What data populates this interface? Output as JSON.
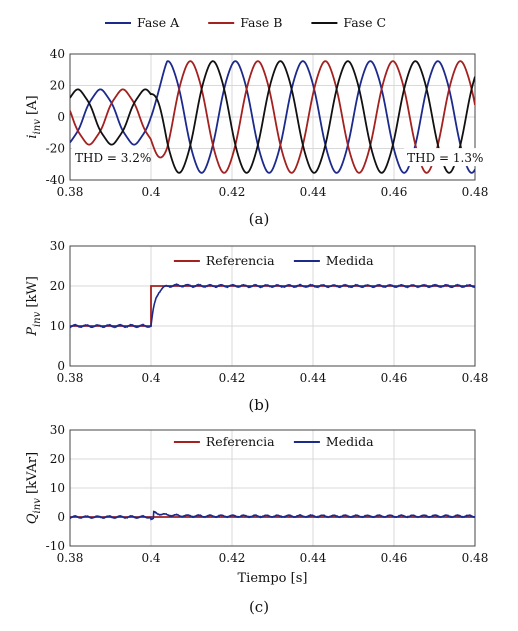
{
  "colors": {
    "fase_a": "#1c2a8c",
    "fase_b": "#a3211f",
    "fase_c": "#111111",
    "referencia": "#a3211f",
    "medida": "#1c2a8c",
    "grid": "#d9d9d9",
    "axis": "#444444"
  },
  "chart_data": [
    {
      "type": "line",
      "caption": "(a)",
      "ylabel_main": "i",
      "ylabel_sub": "inv",
      "ylabel_unit": "[A]",
      "xlabel": "",
      "xlim": [
        0.38,
        0.48
      ],
      "ylim": [
        -40,
        40
      ],
      "xticks": [
        0.38,
        0.4,
        0.42,
        0.44,
        0.46,
        0.48
      ],
      "xtick_labels": [
        "0.38",
        "0.4",
        "0.42",
        "0.44",
        "0.46",
        "0.48"
      ],
      "yticks": [
        -40,
        -20,
        0,
        20,
        40
      ],
      "ytick_labels": [
        "-40",
        "-20",
        "0",
        "20",
        "40"
      ],
      "grid": true,
      "legend_position": "top-outside",
      "annotations": [
        {
          "text": "THD = 3.2%",
          "x": 0.3805,
          "y": -28
        },
        {
          "text": "THD = 1.3%",
          "x": 0.4625,
          "y": -28
        }
      ],
      "frequency_hz": 60,
      "series": [
        {
          "name": "Fase A",
          "color_key": "fase_a",
          "amplitude_before": 17,
          "amplitude_after": 35,
          "phase_deg": 0,
          "harmonic_ratio": 0.032
        },
        {
          "name": "Fase B",
          "color_key": "fase_b",
          "amplitude_before": 17,
          "amplitude_after": 35,
          "phase_deg": -120,
          "harmonic_ratio": 0.032
        },
        {
          "name": "Fase C",
          "color_key": "fase_c",
          "amplitude_before": 17,
          "amplitude_after": 35,
          "phase_deg": 120,
          "harmonic_ratio": 0.032
        }
      ],
      "step_time": 0.4,
      "transition_end": 0.404
    },
    {
      "type": "line",
      "caption": "(b)",
      "ylabel_main": "P",
      "ylabel_sub": "inv",
      "ylabel_unit": "[kW]",
      "xlabel": "",
      "xlim": [
        0.38,
        0.48
      ],
      "ylim": [
        0,
        30
      ],
      "xticks": [
        0.38,
        0.4,
        0.42,
        0.44,
        0.46,
        0.48
      ],
      "xtick_labels": [
        "0.38",
        "0.4",
        "0.42",
        "0.44",
        "0.46",
        "0.48"
      ],
      "yticks": [
        0,
        10,
        20,
        30
      ],
      "ytick_labels": [
        "0",
        "10",
        "20",
        "30"
      ],
      "grid": true,
      "legend_position": "top-center",
      "series": [
        {
          "name": "Referencia",
          "color_key": "referencia",
          "kind": "step",
          "before": 10,
          "after": 20,
          "step_time": 0.4
        },
        {
          "name": "Medida",
          "color_key": "medida",
          "kind": "measured",
          "before": 10,
          "after": 20,
          "ripple": 0.25,
          "overshoot": 0.8,
          "step_time": 0.4
        }
      ]
    },
    {
      "type": "line",
      "caption": "(c)",
      "ylabel_main": "Q",
      "ylabel_sub": "inv",
      "ylabel_unit": "[kVAr]",
      "xlabel": "Tiempo [s]",
      "xlim": [
        0.38,
        0.48
      ],
      "ylim": [
        -10,
        30
      ],
      "xticks": [
        0.38,
        0.4,
        0.42,
        0.44,
        0.46,
        0.48
      ],
      "xtick_labels": [
        "0.38",
        "0.4",
        "0.42",
        "0.44",
        "0.46",
        "0.48"
      ],
      "yticks": [
        -10,
        0,
        10,
        20,
        30
      ],
      "ytick_labels": [
        "-10",
        "0",
        "10",
        "20",
        "30"
      ],
      "grid": true,
      "legend_position": "top-center",
      "series": [
        {
          "name": "Referencia",
          "color_key": "referencia",
          "kind": "step",
          "before": 0,
          "after": 0,
          "step_time": 0.4
        },
        {
          "name": "Medida",
          "color_key": "medida",
          "kind": "measured",
          "before": 0,
          "after": 0.3,
          "ripple": 0.3,
          "overshoot": 1.6,
          "step_time": 0.4
        }
      ]
    }
  ]
}
